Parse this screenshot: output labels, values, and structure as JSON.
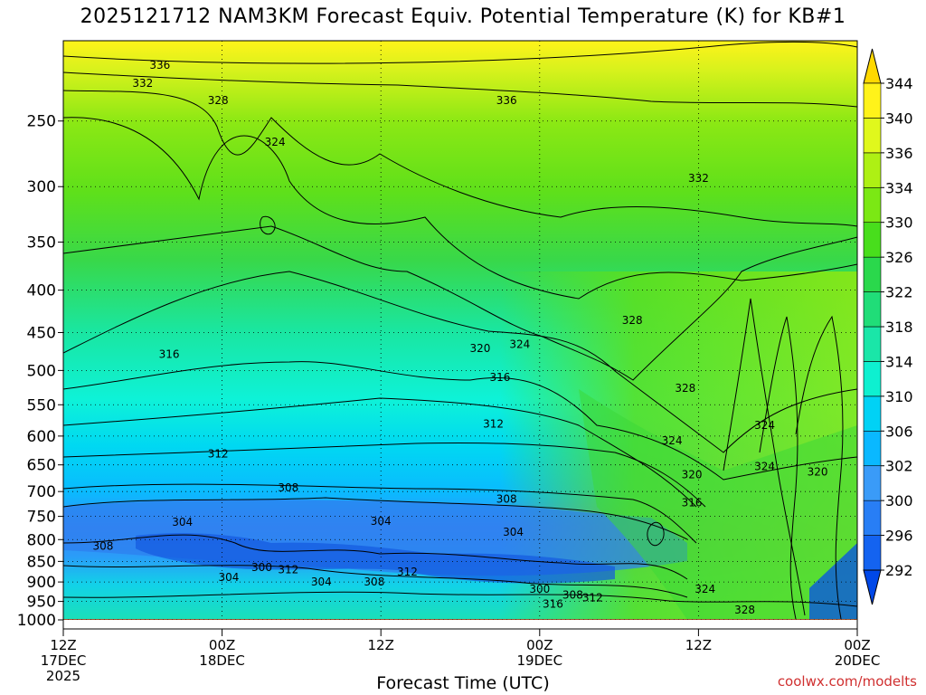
{
  "title": "2025121712 NAM3KM Forecast Equiv. Potential Temperature (K) for KB#1",
  "xlabel": "Forecast Time (UTC)",
  "credit": "coolwx.com/modelts",
  "chart_data": {
    "type": "heatmap",
    "y_axis": {
      "label": "",
      "scale": "log-pressure",
      "range": [
        1000,
        200
      ],
      "ticks": [
        250,
        300,
        350,
        400,
        450,
        500,
        550,
        600,
        650,
        700,
        750,
        800,
        850,
        900,
        950,
        1000
      ]
    },
    "x_axis": {
      "label": "Forecast Time (UTC)",
      "range_hours": [
        0,
        60
      ],
      "ticks": [
        {
          "hour": 0,
          "lines": [
            "12Z",
            "17DEC",
            "2025"
          ]
        },
        {
          "hour": 12,
          "lines": [
            "00Z",
            "18DEC"
          ]
        },
        {
          "hour": 24,
          "lines": [
            "12Z"
          ]
        },
        {
          "hour": 36,
          "lines": [
            "00Z",
            "19DEC"
          ]
        },
        {
          "hour": 48,
          "lines": [
            "12Z"
          ]
        },
        {
          "hour": 60,
          "lines": [
            "00Z",
            "20DEC"
          ]
        }
      ]
    },
    "colorbar": {
      "levels": [
        292,
        296,
        300,
        302,
        306,
        310,
        314,
        318,
        322,
        326,
        330,
        334,
        336,
        340,
        344
      ],
      "colors": [
        "#0048e8",
        "#1463f0",
        "#287ef5",
        "#3a9bf8",
        "#0ab8ff",
        "#00d2f5",
        "#0ef0d0",
        "#1ae6a8",
        "#20dd78",
        "#2ad84c",
        "#48de1c",
        "#7be814",
        "#aef014",
        "#e0f81c",
        "#fff31a",
        "#ffd800"
      ]
    },
    "contour_labels": [
      {
        "t": 7.3,
        "p": 214,
        "text": "336"
      },
      {
        "t": 6.0,
        "p": 225,
        "text": "332"
      },
      {
        "t": 11.7,
        "p": 236,
        "text": "328"
      },
      {
        "t": 33.5,
        "p": 236,
        "text": "336"
      },
      {
        "t": 16.0,
        "p": 265,
        "text": "324"
      },
      {
        "t": 48.0,
        "p": 293,
        "text": "332"
      },
      {
        "t": 43.0,
        "p": 435,
        "text": "328"
      },
      {
        "t": 34.5,
        "p": 465,
        "text": "324"
      },
      {
        "t": 31.5,
        "p": 470,
        "text": "320"
      },
      {
        "t": 8.0,
        "p": 478,
        "text": "316"
      },
      {
        "t": 33.0,
        "p": 510,
        "text": "316"
      },
      {
        "t": 47.0,
        "p": 525,
        "text": "328"
      },
      {
        "t": 32.5,
        "p": 580,
        "text": "312"
      },
      {
        "t": 53.0,
        "p": 582,
        "text": "324"
      },
      {
        "t": 46.0,
        "p": 608,
        "text": "324"
      },
      {
        "t": 11.7,
        "p": 630,
        "text": "312"
      },
      {
        "t": 53.0,
        "p": 653,
        "text": "324"
      },
      {
        "t": 57.0,
        "p": 663,
        "text": "320"
      },
      {
        "t": 47.5,
        "p": 668,
        "text": "320"
      },
      {
        "t": 17.0,
        "p": 693,
        "text": "308"
      },
      {
        "t": 33.5,
        "p": 715,
        "text": "308"
      },
      {
        "t": 47.5,
        "p": 722,
        "text": "316"
      },
      {
        "t": 9.0,
        "p": 762,
        "text": "304"
      },
      {
        "t": 24.0,
        "p": 760,
        "text": "304"
      },
      {
        "t": 34.0,
        "p": 784,
        "text": "304"
      },
      {
        "t": 3.0,
        "p": 815,
        "text": "308"
      },
      {
        "t": 15.0,
        "p": 864,
        "text": "300"
      },
      {
        "t": 17.0,
        "p": 870,
        "text": "312"
      },
      {
        "t": 26.0,
        "p": 875,
        "text": "312"
      },
      {
        "t": 12.5,
        "p": 888,
        "text": "304"
      },
      {
        "t": 19.5,
        "p": 900,
        "text": "304"
      },
      {
        "t": 23.5,
        "p": 900,
        "text": "308"
      },
      {
        "t": 36.0,
        "p": 918,
        "text": "300"
      },
      {
        "t": 48.5,
        "p": 918,
        "text": "324"
      },
      {
        "t": 38.5,
        "p": 933,
        "text": "308"
      },
      {
        "t": 40.0,
        "p": 940,
        "text": "312"
      },
      {
        "t": 37.0,
        "p": 957,
        "text": "316"
      },
      {
        "t": 51.5,
        "p": 973,
        "text": "328"
      }
    ],
    "grid": "dotted"
  }
}
